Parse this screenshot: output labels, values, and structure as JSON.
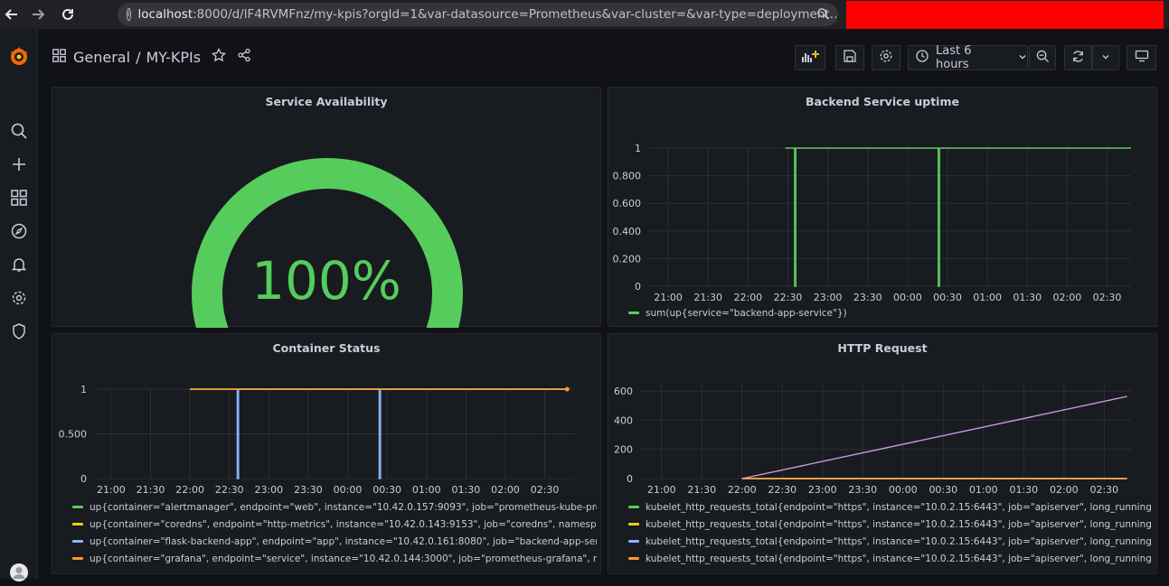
{
  "browser": {
    "url_host": "localhost",
    "url_rest": ":8000/d/lF4RVMFnz/my-kpis?orgId=1&var-datasource=Prometheus&var-cluster=&var-type=deployment…"
  },
  "breadcrumb": {
    "folder": "General",
    "separator": "/",
    "dashboard": "MY-KPIs"
  },
  "toolbar": {
    "time_range": "Last 6 hours"
  },
  "icons": [
    "back-icon",
    "forward-icon",
    "reload-icon",
    "info-icon",
    "zoom-icon",
    "grafana-logo",
    "search-icon",
    "plus-icon",
    "dashboards-icon",
    "explore-icon",
    "alert-bell-icon",
    "gear-icon",
    "shield-icon",
    "star-icon",
    "share-icon",
    "add-panel-icon",
    "save-icon",
    "settings-icon",
    "clock-icon",
    "chevron-down-icon",
    "zoom-out-icon",
    "refresh-icon",
    "tv-icon",
    "avatar"
  ],
  "colors": {
    "green": "#56cc5d",
    "yellow": "#f2cc0c",
    "blue": "#8ab8ff",
    "orange": "#ff9830",
    "purple": "#ca95e5"
  },
  "panels": {
    "availability": {
      "title": "Service Availability",
      "value": "100%"
    },
    "uptime": {
      "title": "Backend Service uptime"
    },
    "containers": {
      "title": "Container Status"
    },
    "http": {
      "title": "HTTP Request"
    }
  },
  "chart_data": [
    {
      "type": "gauge",
      "title": "Service Availability",
      "value": 100,
      "unit": "%",
      "range": [
        0,
        100
      ]
    },
    {
      "type": "line",
      "title": "Backend Service uptime",
      "x_ticks": [
        "21:00",
        "21:30",
        "22:00",
        "22:30",
        "23:00",
        "23:30",
        "00:00",
        "00:30",
        "01:00",
        "01:30",
        "02:00",
        "02:30"
      ],
      "y_ticks": [
        "0",
        "0.200",
        "0.400",
        "0.600",
        "0.800",
        "1"
      ],
      "ylim": [
        0,
        1
      ],
      "xlim": [
        "20:45",
        "02:48"
      ],
      "series": [
        {
          "name": "sum(up{service=\"backend-app-service\"})",
          "color": "#56cc5d",
          "points": [
            [
              "22:28",
              1
            ],
            [
              "22:35",
              1
            ],
            [
              "22:35",
              0
            ],
            [
              "22:36",
              0
            ],
            [
              "22:36",
              1
            ],
            [
              "00:23",
              1
            ],
            [
              "00:23",
              0
            ],
            [
              "00:24",
              0
            ],
            [
              "00:24",
              1
            ],
            [
              "02:48",
              1
            ]
          ]
        }
      ]
    },
    {
      "type": "line",
      "title": "Container Status",
      "x_ticks": [
        "21:00",
        "21:30",
        "22:00",
        "22:30",
        "23:00",
        "23:30",
        "00:00",
        "00:30",
        "01:00",
        "01:30",
        "02:00",
        "02:30"
      ],
      "y_ticks": [
        "0",
        "0.500",
        "1"
      ],
      "ylim": [
        0,
        1
      ],
      "xlim": [
        "20:47",
        "02:53"
      ],
      "series": [
        {
          "name": "up{container=\"alertmanager\", endpoint=\"web\", instance=\"10.42.0.157:9093\", job=\"prometheus-kube-prometheus-al",
          "color": "#56cc5d",
          "points": [
            [
              "22:00",
              1
            ],
            [
              "02:47",
              1
            ]
          ]
        },
        {
          "name": "up{container=\"coredns\", endpoint=\"http-metrics\", instance=\"10.42.0.143:9153\", job=\"coredns\", namespace=\"kube-s",
          "color": "#f2cc0c",
          "points": [
            [
              "22:00",
              1
            ],
            [
              "02:47",
              1
            ]
          ]
        },
        {
          "name": "up{container=\"flask-backend-app\", endpoint=\"app\", instance=\"10.42.0.161:8080\", job=\"backend-app-service\", name",
          "color": "#8ab8ff",
          "points": [
            [
              "22:36",
              1
            ],
            [
              "22:36",
              0
            ],
            [
              "22:37",
              0
            ],
            [
              "22:37",
              1
            ],
            [
              "00:24",
              1
            ],
            [
              "00:24",
              0
            ],
            [
              "00:25",
              0
            ],
            [
              "00:25",
              1
            ],
            [
              "02:47",
              1
            ]
          ]
        },
        {
          "name": "up{container=\"grafana\", endpoint=\"service\", instance=\"10.42.0.144:3000\", job=\"prometheus-grafana\", namespace=\"",
          "color": "#ff9830",
          "points": [
            [
              "22:00",
              1
            ],
            [
              "02:47",
              1
            ]
          ]
        }
      ]
    },
    {
      "type": "line",
      "title": "HTTP Request",
      "x_ticks": [
        "21:00",
        "21:30",
        "22:00",
        "22:30",
        "23:00",
        "23:30",
        "00:00",
        "00:30",
        "01:00",
        "01:30",
        "02:00",
        "02:30"
      ],
      "y_ticks": [
        "0",
        "200",
        "400",
        "600"
      ],
      "ylim": [
        0,
        650
      ],
      "xlim": [
        "20:44",
        "02:50"
      ],
      "series": [
        {
          "name": "kubelet_http_requests_total{endpoint=\"https\", instance=\"10.0.2.15:6443\", job=\"apiserver\", long_running=\"false\", me",
          "color": "#56cc5d",
          "points": [
            [
              "22:00",
              0
            ],
            [
              "02:47",
              0
            ]
          ]
        },
        {
          "name": "kubelet_http_requests_total{endpoint=\"https\", instance=\"10.0.2.15:6443\", job=\"apiserver\", long_running=\"false\", me",
          "color": "#f2cc0c",
          "points": [
            [
              "22:00",
              0
            ],
            [
              "02:47",
              0
            ]
          ]
        },
        {
          "name": "kubelet_http_requests_total{endpoint=\"https\", instance=\"10.0.2.15:6443\", job=\"apiserver\", long_running=\"false\", me",
          "color": "#8ab8ff",
          "points": [
            [
              "22:00",
              0
            ],
            [
              "02:47",
              0
            ]
          ]
        },
        {
          "name": "kubelet_http_requests_total{endpoint=\"https\", instance=\"10.0.2.15:6443\", job=\"apiserver\", long_running=\"false\", me",
          "color": "#ff9830",
          "points": [
            [
              "22:00",
              0
            ],
            [
              "02:47",
              0
            ]
          ]
        },
        {
          "name": "",
          "color": "#ca95e5",
          "points": [
            [
              "22:00",
              0
            ],
            [
              "02:47",
              563
            ]
          ]
        }
      ]
    }
  ]
}
